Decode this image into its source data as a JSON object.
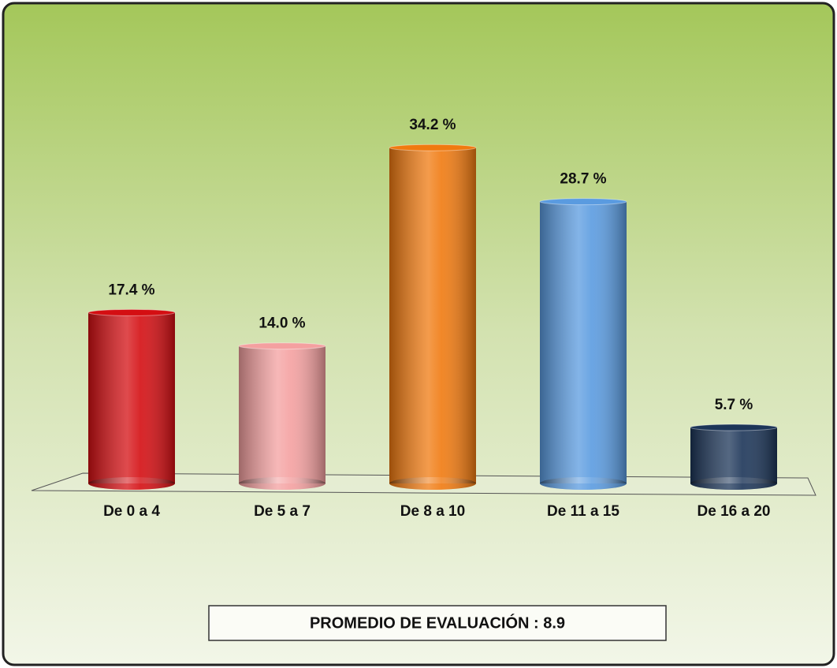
{
  "chart_data": {
    "type": "bar",
    "categories": [
      "De 0 a 4",
      "De 5 a 7",
      "De 8 a 10",
      "De 11 a 15",
      "De 16 a 20"
    ],
    "values": [
      17.4,
      14.0,
      34.2,
      28.7,
      5.7
    ],
    "value_labels": [
      "17.4 %",
      "14.0 %",
      "34.2 %",
      "28.7 %",
      "5.7 %"
    ],
    "colors": [
      "#d40e12",
      "#f4a0a0",
      "#f07a10",
      "#5a9be0",
      "#1c3558"
    ],
    "annotation": "PROMEDIO DE EVALUACIÓN :  8.9"
  }
}
